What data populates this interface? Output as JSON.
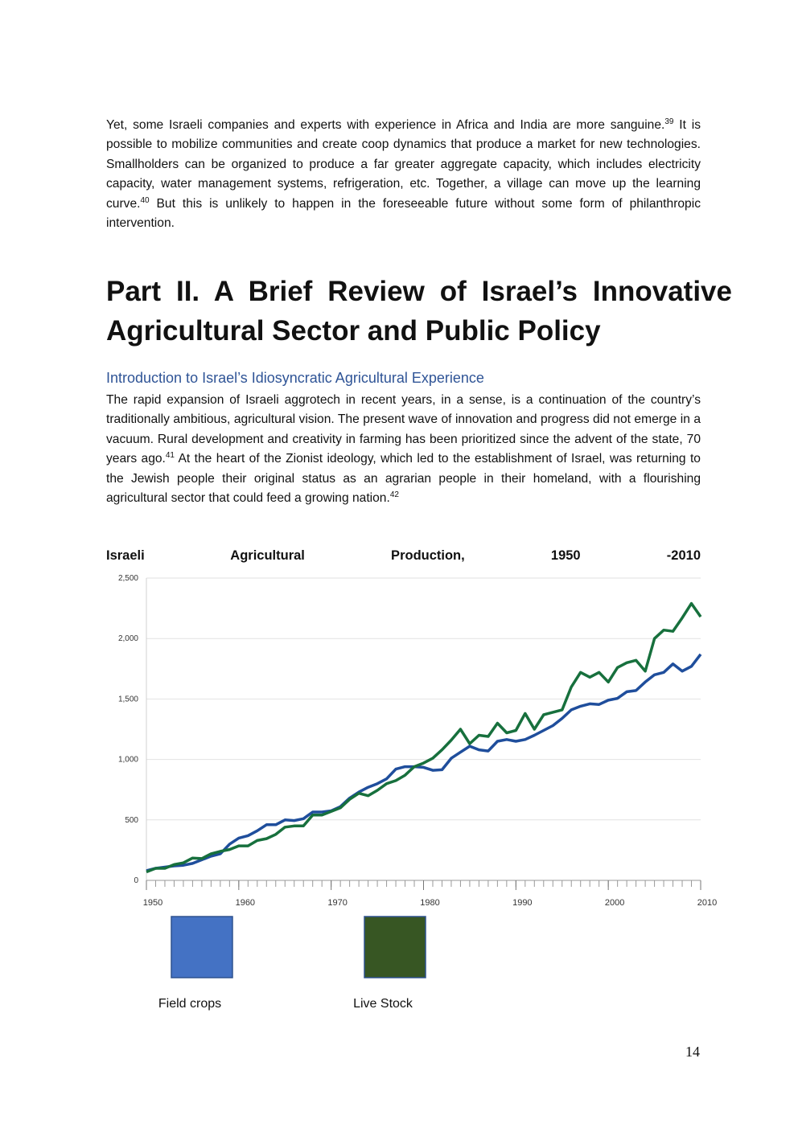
{
  "paragraphs": [
    [
      {
        "text": "Yet, some Israeli companies and experts with experience in Africa and India are more sanguine."
      },
      {
        "sup": "39"
      },
      {
        "text": " It is possible to mobilize communities and create coop dynamics that produce a market for new technologies. Smallholders can be organized to produce a far greater aggregate capacity, which includes electricity capacity, water management systems, refrigeration, etc. Together, a village can move up the learning curve."
      },
      {
        "sup": "40"
      },
      {
        "text": "  But this is unlikely to happen in the foreseeable future without some form of philanthropic intervention."
      }
    ]
  ],
  "heading": "Part II. A Brief Review of Israel’s Innovative Agricultural Sector and Public Policy",
  "subheading": "Introduction to Israel’s Idiosyncratic Agricultural Experience",
  "paragraphs2": [
    [
      {
        "text": "The rapid expansion of Israeli aggrotech in recent years, in a sense, is a continuation of the country’s traditionally ambitious, agricultural vision. The present wave of innovation and progress did not emerge in a vacuum. Rural development and creativity in farming has been prioritized since the advent of the state, 70 years ago."
      },
      {
        "sup": "41"
      },
      {
        "text": " At the heart of the Zionist ideology, which led to the establishment of Israel, was returning to the Jewish people their original status as an agrarian people in their homeland, with a flourishing agricultural sector that could feed a growing nation."
      },
      {
        "sup": "42"
      }
    ]
  ],
  "chart_data": {
    "type": "line",
    "title": "Israeli Agricultural Production, 1950 -2010",
    "x": [
      1950,
      1951,
      1952,
      1953,
      1954,
      1955,
      1956,
      1957,
      1958,
      1959,
      1960,
      1961,
      1962,
      1963,
      1964,
      1965,
      1966,
      1967,
      1968,
      1969,
      1970,
      1971,
      1972,
      1973,
      1974,
      1975,
      1976,
      1977,
      1978,
      1979,
      1980,
      1981,
      1982,
      1983,
      1984,
      1985,
      1986,
      1987,
      1988,
      1989,
      1990,
      1991,
      1992,
      1993,
      1994,
      1995,
      1996,
      1997,
      1998,
      1999,
      2000,
      2001,
      2002,
      2003,
      2004,
      2005,
      2006,
      2007,
      2008,
      2009,
      2010
    ],
    "series": [
      {
        "name": "Field crops",
        "color": "#1f4e9c",
        "legend_color": "#4472c4",
        "values": [
          80,
          100,
          110,
          120,
          125,
          140,
          170,
          200,
          220,
          300,
          350,
          370,
          410,
          460,
          460,
          500,
          495,
          510,
          565,
          565,
          575,
          610,
          680,
          730,
          770,
          800,
          840,
          920,
          940,
          940,
          935,
          910,
          915,
          1010,
          1060,
          1110,
          1080,
          1070,
          1150,
          1165,
          1150,
          1165,
          1200,
          1240,
          1280,
          1340,
          1410,
          1440,
          1460,
          1455,
          1490,
          1505,
          1560,
          1570,
          1640,
          1700,
          1720,
          1790,
          1730,
          1770,
          1870
        ]
      },
      {
        "name": "Live Stock",
        "color": "#17703d",
        "legend_color": "#375623",
        "values": [
          70,
          100,
          100,
          130,
          145,
          185,
          180,
          220,
          240,
          255,
          285,
          285,
          330,
          345,
          380,
          440,
          450,
          450,
          540,
          540,
          570,
          600,
          670,
          720,
          700,
          745,
          800,
          825,
          870,
          940,
          970,
          1010,
          1080,
          1160,
          1250,
          1130,
          1200,
          1190,
          1300,
          1220,
          1240,
          1380,
          1250,
          1370,
          1390,
          1410,
          1600,
          1720,
          1680,
          1720,
          1640,
          1760,
          1800,
          1820,
          1730,
          2000,
          2070,
          2060,
          2170,
          2290,
          2180
        ]
      }
    ],
    "xlim": [
      1950,
      2010
    ],
    "xticks": [
      1950,
      1960,
      1970,
      1980,
      1990,
      2000,
      2010
    ],
    "ylim": [
      0,
      2500
    ],
    "yticks": [
      0,
      500,
      {
        "value": 1000,
        "label": "1,000"
      },
      {
        "value": 1500,
        "label": "1,500"
      },
      {
        "value": 2000,
        "label": "2,000"
      },
      {
        "value": 2500,
        "label": "2,500"
      }
    ],
    "grid": true
  },
  "page_number": "14"
}
